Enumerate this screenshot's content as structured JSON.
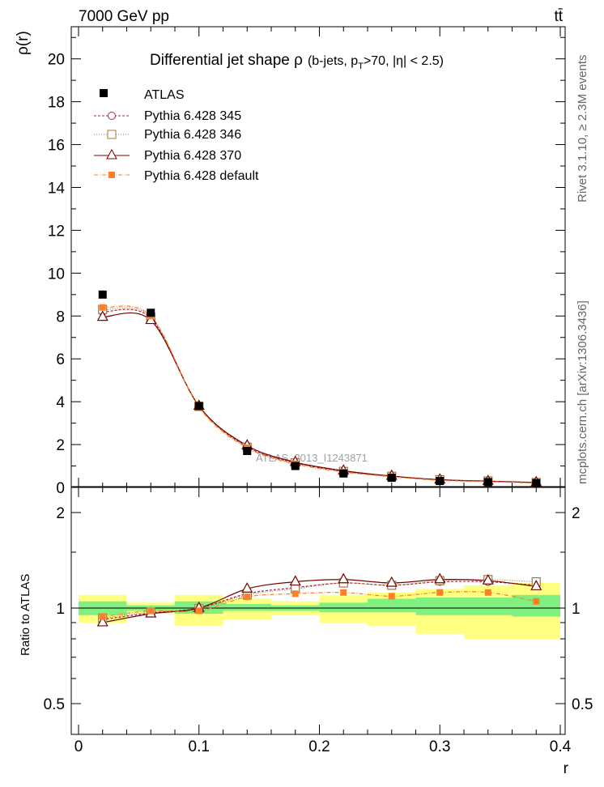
{
  "header": {
    "energy_label": "7000 GeV pp",
    "process_label": "tt̄"
  },
  "side_labels": {
    "rivet": "Rivet 3.1.10, ≥ 2.3M events",
    "mcplots": "mcplots.cern.ch [arXiv:1306.3436]"
  },
  "main_plot": {
    "title_prefix": "Differential jet shape  ρ",
    "title_detail": "(b-jets, p",
    "title_sub": "T",
    "title_rest": ">70, |η| < 2.5)",
    "ylabel": "ρ(r)",
    "watermark": "ATLAS_2013_I1243871",
    "ylim": [
      0,
      21.5
    ],
    "yticks": [
      "0",
      "2",
      "4",
      "6",
      "8",
      "10",
      "12",
      "14",
      "16",
      "18",
      "20"
    ]
  },
  "ratio_plot": {
    "ylabel": "Ratio to ATLAS",
    "ylim": [
      0.4,
      2.4
    ],
    "yticks": [
      "0.5",
      "1",
      "2"
    ]
  },
  "xaxis": {
    "xlabel": "r",
    "xlim": [
      0,
      0.4
    ],
    "xticks": [
      "0",
      "0.1",
      "0.2",
      "0.3",
      "0.4"
    ]
  },
  "legend": {
    "atlas": "ATLAS",
    "p345": "Pythia 6.428 345",
    "p346": "Pythia 6.428 346",
    "p370": "Pythia 6.428 370",
    "pdef": "Pythia 6.428 default"
  },
  "colors": {
    "atlas": "#000000",
    "p345": "#a0283c",
    "p346": "#a0783c",
    "p370": "#780000",
    "pdef": "#ff7f27",
    "band_inner": "#80f080",
    "band_outer": "#ffff80"
  },
  "chart_data": {
    "type": "scatter",
    "x": [
      0.02,
      0.06,
      0.1,
      0.14,
      0.18,
      0.22,
      0.26,
      0.3,
      0.34,
      0.38
    ],
    "bin_edges": [
      0.0,
      0.04,
      0.08,
      0.12,
      0.16,
      0.2,
      0.24,
      0.28,
      0.32,
      0.36,
      0.4
    ],
    "series": [
      {
        "name": "ATLAS",
        "values": [
          9.0,
          8.15,
          3.8,
          1.7,
          1.0,
          0.65,
          0.45,
          0.3,
          0.25,
          0.2
        ]
      },
      {
        "name": "Pythia 6.428 345",
        "values": [
          8.2,
          7.9,
          3.8,
          1.9,
          1.15,
          0.75,
          0.52,
          0.36,
          0.29,
          0.23
        ]
      },
      {
        "name": "Pythia 6.428 346",
        "values": [
          8.3,
          7.95,
          3.78,
          1.88,
          1.15,
          0.75,
          0.52,
          0.36,
          0.3,
          0.23
        ]
      },
      {
        "name": "Pythia 6.428 370",
        "values": [
          7.95,
          7.8,
          3.8,
          1.95,
          1.18,
          0.78,
          0.53,
          0.36,
          0.29,
          0.23
        ]
      },
      {
        "name": "Pythia 6.428 default",
        "values": [
          8.4,
          8.0,
          3.75,
          1.85,
          1.1,
          0.72,
          0.5,
          0.33,
          0.27,
          0.2
        ]
      }
    ],
    "ratio_series": [
      {
        "name": "Pythia 6.428 345",
        "values": [
          0.92,
          0.965,
          1.0,
          1.11,
          1.16,
          1.2,
          1.18,
          1.21,
          1.21,
          1.18
        ]
      },
      {
        "name": "Pythia 6.428 346",
        "values": [
          0.93,
          0.97,
          0.995,
          1.1,
          1.15,
          1.2,
          1.18,
          1.22,
          1.23,
          1.21
        ]
      },
      {
        "name": "Pythia 6.428 370",
        "values": [
          0.9,
          0.96,
          1.0,
          1.15,
          1.21,
          1.23,
          1.2,
          1.23,
          1.22,
          1.17
        ]
      },
      {
        "name": "Pythia 6.428 default",
        "values": [
          0.94,
          0.98,
          0.98,
          1.085,
          1.11,
          1.12,
          1.09,
          1.12,
          1.12,
          1.05
        ]
      }
    ],
    "uncertainty_bands": {
      "inner": [
        [
          0.95,
          1.05
        ],
        [
          0.98,
          1.02
        ],
        [
          0.96,
          1.05
        ],
        [
          0.98,
          1.03
        ],
        [
          0.98,
          1.02
        ],
        [
          0.97,
          1.04
        ],
        [
          0.97,
          1.07
        ],
        [
          0.95,
          1.08
        ],
        [
          0.95,
          1.08
        ],
        [
          0.94,
          1.1
        ]
      ],
      "outer": [
        [
          0.9,
          1.1
        ],
        [
          0.96,
          1.04
        ],
        [
          0.88,
          1.1
        ],
        [
          0.92,
          1.07
        ],
        [
          0.95,
          1.05
        ],
        [
          0.9,
          1.1
        ],
        [
          0.88,
          1.12
        ],
        [
          0.83,
          1.15
        ],
        [
          0.8,
          1.18
        ],
        [
          0.8,
          1.2
        ]
      ]
    }
  }
}
